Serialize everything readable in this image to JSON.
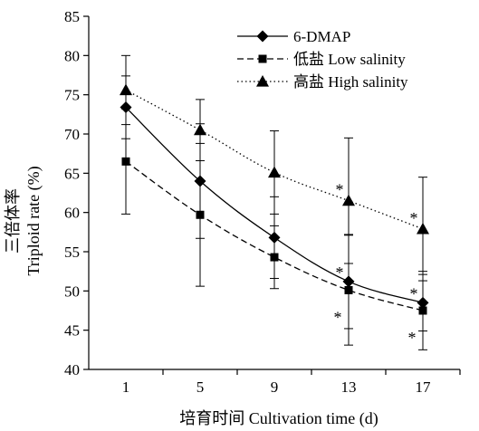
{
  "chart_data": {
    "type": "line",
    "xlabel": "培育时间 Cultivation time (d)",
    "ylabel_cn": "三倍体率",
    "ylabel_en": "Triploid rate (%)",
    "ylim": [
      40,
      85
    ],
    "yticks": [
      40,
      45,
      50,
      55,
      60,
      65,
      70,
      75,
      80,
      85
    ],
    "categories": [
      "1",
      "5",
      "9",
      "13",
      "17"
    ],
    "grid": false,
    "legend_position": "top-right",
    "series": [
      {
        "name": "6-DMAP",
        "marker": "diamond",
        "line_style": "solid",
        "values": [
          73.4,
          64.0,
          56.8,
          51.2,
          48.5
        ],
        "errors": [
          4.0,
          7.3,
          5.2,
          6.0,
          3.6
        ],
        "significant": [
          false,
          false,
          false,
          true,
          true
        ]
      },
      {
        "name": "低盐 Low salinity",
        "marker": "square",
        "line_style": "dashed",
        "values": [
          66.5,
          59.7,
          54.3,
          50.1,
          47.5
        ],
        "errors": [
          6.7,
          9.1,
          4.0,
          7.0,
          5.0
        ],
        "significant": [
          false,
          false,
          false,
          true,
          true
        ]
      },
      {
        "name": "高盐 High salinity",
        "marker": "triangle",
        "line_style": "dotted",
        "values": [
          75.6,
          70.5,
          65.1,
          61.5,
          57.9
        ],
        "errors": [
          4.4,
          3.9,
          5.3,
          8.0,
          6.6
        ],
        "significant": [
          false,
          false,
          false,
          true,
          true
        ]
      }
    ],
    "significance_marker": "*"
  }
}
